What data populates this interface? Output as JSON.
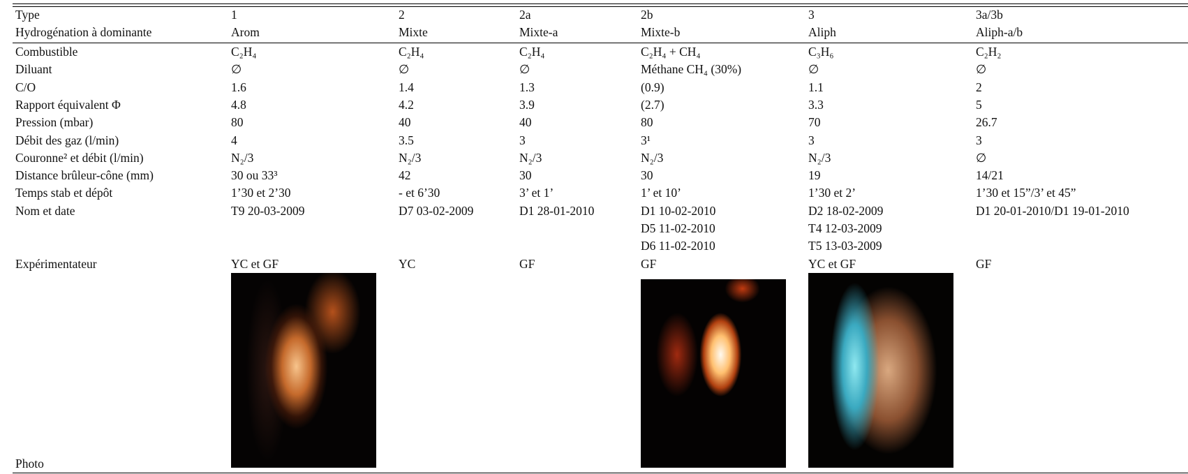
{
  "table": {
    "header": [
      [
        "Type",
        "1",
        "2",
        "2a",
        "2b",
        "3",
        "3a/3b"
      ],
      [
        "Hydrogénation à dominante",
        "Arom",
        "Mixte",
        "Mixte-a",
        "Mixte-b",
        "Aliph",
        "Aliph-a/b"
      ]
    ],
    "rows": [
      [
        "Combustible",
        "C₂H₄",
        "C₂H₄",
        "C₂H₄",
        "C₂H₄ + CH₄",
        "C₃H₆",
        "C₂H₂"
      ],
      [
        "Diluant",
        "∅",
        "∅",
        "∅",
        "Méthane CH₄ (30%)",
        "∅",
        "∅"
      ],
      [
        "C/O",
        "1.6",
        "1.4",
        "1.3",
        "(0.9)",
        "1.1",
        "2"
      ],
      [
        "Rapport équivalent Φ",
        "4.8",
        "4.2",
        "3.9",
        "(2.7)",
        "3.3",
        "5"
      ],
      [
        "Pression (mbar)",
        "80",
        "40",
        "40",
        "80",
        "70",
        "26.7"
      ],
      [
        "Débit des gaz (l/min)",
        "4",
        "3.5",
        "3",
        "3¹",
        "3",
        "3"
      ],
      [
        "Couronne² et débit (l/min)",
        "N₂/3",
        "N₂/3",
        "N₂/3",
        "N₂/3",
        "N₂/3",
        "∅"
      ],
      [
        "Distance brûleur-cône (mm)",
        "30 ou 33³",
        "42",
        "30",
        "30",
        "19",
        "14/21"
      ],
      [
        "Temps stab et dépôt",
        "1’30 et 2’30",
        "- et 6’30",
        "3’ et 1’",
        "1’ et 10’",
        "1’30 et 2’",
        "1’30 et 15”/3’ et 45”"
      ],
      [
        "Nom et date",
        "T9 20-03-2009",
        "D7 03-02-2009",
        "D1 28-01-2010",
        [
          "D1 10-02-2010",
          "D5 11-02-2010",
          "D6 11-02-2010"
        ],
        [
          "D2 18-02-2009",
          "T4 12-03-2009",
          "T5 13-03-2009"
        ],
        "D1 20-01-2010/D1 19-01-2010"
      ],
      [
        "Expérimentateur",
        "YC et GF",
        "YC",
        "GF",
        "GF",
        "YC et GF",
        "GF"
      ]
    ],
    "photo_label": "Photo"
  }
}
